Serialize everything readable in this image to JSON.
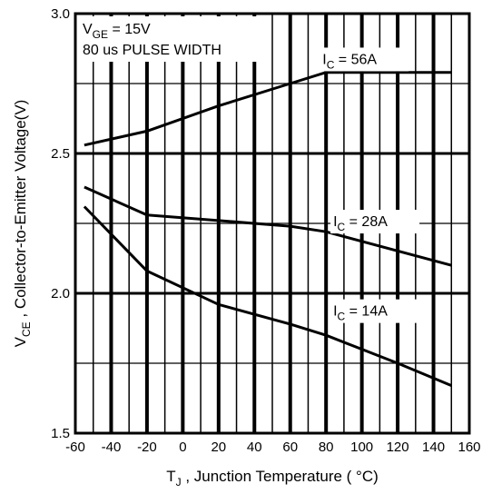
{
  "chart_data": {
    "type": "line",
    "xlabel": {
      "main": "T",
      "sub": "J",
      "rest": " , Junction Temperature ( °C)"
    },
    "ylabel": {
      "main": "V",
      "sub": "CE",
      "rest": " , Collector-to-Emitter Voltage(V)"
    },
    "xlim": [
      -60,
      160
    ],
    "ylim": [
      1.5,
      3.0
    ],
    "x_ticks": [
      -60,
      -40,
      -20,
      0,
      20,
      40,
      60,
      80,
      100,
      120,
      140,
      160
    ],
    "x_tick_labels": [
      "-60",
      "-40",
      "-20",
      "0",
      "20",
      "40",
      "60",
      "80",
      "100",
      "120",
      "140",
      "160"
    ],
    "y_ticks": [
      1.5,
      2.0,
      2.5,
      3.0
    ],
    "y_tick_labels": [
      "1.5",
      "2.0",
      "2.5",
      "3.0"
    ],
    "conditions": [
      {
        "main": "V",
        "sub": "GE",
        "rest": " = 15V"
      },
      {
        "text": "80 us PULSE WIDTH"
      }
    ],
    "series": [
      {
        "name": {
          "main": "I",
          "sub": "C",
          "rest": " =  56A"
        },
        "label_at": [
          78,
          2.82
        ],
        "x": [
          -55,
          -20,
          20,
          60,
          80,
          150
        ],
        "y": [
          2.53,
          2.58,
          2.67,
          2.75,
          2.79,
          2.79
        ]
      },
      {
        "name": {
          "main": "I",
          "sub": "C",
          "rest": " =  28A"
        },
        "label_at": [
          84,
          2.24
        ],
        "x": [
          -55,
          -20,
          20,
          60,
          80,
          150
        ],
        "y": [
          2.38,
          2.28,
          2.26,
          2.24,
          2.22,
          2.1
        ]
      },
      {
        "name": {
          "main": "I",
          "sub": "C",
          "rest": " =  14A"
        },
        "label_at": [
          84,
          1.92
        ],
        "x": [
          -55,
          -20,
          20,
          60,
          80,
          120,
          150
        ],
        "y": [
          2.31,
          2.08,
          1.96,
          1.89,
          1.85,
          1.75,
          1.67
        ]
      }
    ],
    "grid": true
  }
}
